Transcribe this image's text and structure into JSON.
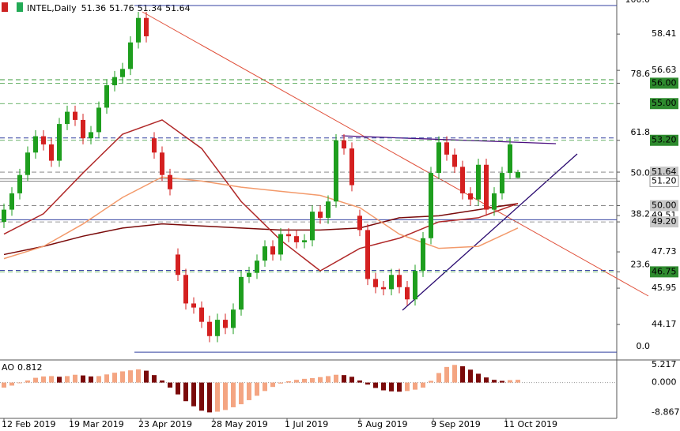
{
  "header": {
    "symbol": "INTEL,Daily"
  },
  "chart_data": {
    "type": "candlestick",
    "ylim": [
      42.43,
      60.08
    ],
    "up_color": "#1e9e1e",
    "down_color": "#d42020",
    "candles": [
      [
        49.2,
        50.1,
        48.9,
        49.8
      ],
      [
        49.8,
        50.9,
        49.5,
        50.6
      ],
      [
        50.6,
        51.8,
        50.3,
        51.5
      ],
      [
        51.5,
        52.9,
        51.2,
        52.6
      ],
      [
        52.6,
        53.7,
        52.3,
        53.4
      ],
      [
        53.4,
        53.7,
        52.7,
        53.0
      ],
      [
        53.0,
        53.3,
        51.9,
        52.2
      ],
      [
        52.2,
        54.3,
        51.9,
        54.0
      ],
      [
        54.0,
        54.9,
        53.7,
        54.6
      ],
      [
        54.6,
        54.9,
        53.9,
        54.2
      ],
      [
        54.2,
        54.5,
        53.0,
        53.3
      ],
      [
        53.3,
        53.9,
        53.0,
        53.6
      ],
      [
        53.6,
        55.1,
        53.3,
        54.8
      ],
      [
        54.8,
        56.2,
        54.5,
        55.9
      ],
      [
        55.9,
        56.6,
        55.6,
        56.3
      ],
      [
        56.3,
        57.0,
        56.0,
        56.7
      ],
      [
        56.7,
        58.3,
        56.4,
        58.0
      ],
      [
        58.0,
        59.5,
        57.7,
        59.2
      ],
      [
        59.2,
        59.5,
        58.0,
        58.3
      ],
      [
        53.3,
        53.6,
        52.3,
        52.6
      ],
      [
        52.6,
        52.9,
        51.2,
        51.5
      ],
      [
        51.5,
        51.8,
        50.5,
        50.8
      ],
      [
        47.6,
        47.9,
        46.3,
        46.6
      ],
      [
        46.6,
        46.9,
        44.9,
        45.2
      ],
      [
        45.2,
        45.5,
        44.7,
        45.0
      ],
      [
        45.0,
        45.3,
        44.0,
        44.3
      ],
      [
        44.3,
        44.6,
        43.3,
        43.6
      ],
      [
        43.6,
        44.7,
        43.3,
        44.4
      ],
      [
        44.4,
        44.7,
        43.7,
        44.0
      ],
      [
        44.0,
        45.2,
        43.7,
        44.9
      ],
      [
        44.9,
        46.8,
        44.6,
        46.5
      ],
      [
        46.5,
        47.0,
        46.2,
        46.7
      ],
      [
        46.7,
        47.6,
        46.4,
        47.3
      ],
      [
        47.3,
        48.3,
        47.0,
        48.0
      ],
      [
        48.0,
        48.3,
        47.3,
        47.6
      ],
      [
        47.6,
        48.9,
        47.3,
        48.6
      ],
      [
        48.6,
        48.9,
        48.2,
        48.5
      ],
      [
        48.5,
        48.8,
        47.9,
        48.2
      ],
      [
        48.2,
        48.6,
        47.9,
        48.3
      ],
      [
        48.3,
        50.0,
        48.0,
        49.7
      ],
      [
        49.7,
        50.0,
        49.1,
        49.4
      ],
      [
        49.4,
        50.5,
        49.1,
        50.2
      ],
      [
        50.2,
        53.5,
        49.9,
        53.2
      ],
      [
        53.2,
        53.5,
        52.5,
        52.8
      ],
      [
        52.8,
        53.1,
        50.7,
        51.0
      ],
      [
        49.5,
        49.8,
        48.5,
        48.8
      ],
      [
        48.8,
        49.1,
        46.1,
        46.4
      ],
      [
        46.4,
        46.7,
        45.7,
        46.0
      ],
      [
        46.0,
        46.3,
        45.6,
        45.9
      ],
      [
        45.9,
        46.9,
        45.6,
        46.6
      ],
      [
        46.6,
        46.9,
        45.7,
        46.0
      ],
      [
        46.0,
        46.3,
        45.1,
        45.4
      ],
      [
        45.4,
        47.1,
        45.1,
        46.8
      ],
      [
        46.8,
        48.7,
        46.5,
        48.4
      ],
      [
        48.4,
        51.9,
        48.1,
        51.6
      ],
      [
        51.6,
        53.4,
        51.3,
        53.1
      ],
      [
        53.1,
        53.4,
        52.2,
        52.5
      ],
      [
        52.5,
        52.8,
        51.6,
        51.9
      ],
      [
        51.9,
        52.2,
        50.3,
        50.6
      ],
      [
        50.6,
        50.9,
        50.0,
        50.3
      ],
      [
        50.3,
        52.3,
        50.0,
        52.0
      ],
      [
        52.0,
        52.3,
        49.5,
        49.8
      ],
      [
        49.8,
        50.9,
        49.5,
        50.6
      ],
      [
        50.6,
        51.9,
        50.3,
        51.6
      ],
      [
        51.6,
        53.3,
        51.3,
        53.0
      ],
      [
        51.36,
        51.76,
        51.34,
        51.64
      ]
    ],
    "ma": [
      {
        "color": "#7a0a0a",
        "x": [
          0,
          5,
          10,
          15,
          20,
          25,
          30,
          35,
          40,
          45,
          50,
          55,
          60,
          65
        ],
        "values": [
          47.6,
          48.0,
          48.5,
          48.9,
          49.1,
          49.0,
          48.9,
          48.8,
          48.8,
          48.9,
          49.4,
          49.5,
          49.8,
          50.1
        ]
      },
      {
        "color": "#b02828",
        "x": [
          0,
          5,
          10,
          15,
          20,
          25,
          30,
          35,
          40,
          45,
          50,
          55,
          60,
          65
        ],
        "values": [
          48.6,
          49.6,
          51.6,
          53.5,
          54.2,
          52.8,
          50.2,
          48.3,
          46.8,
          47.9,
          48.4,
          49.2,
          49.4,
          50.1
        ]
      },
      {
        "color": "#f39a6b",
        "x": [
          0,
          5,
          10,
          15,
          20,
          25,
          30,
          35,
          40,
          45,
          50,
          55,
          60,
          65
        ],
        "values": [
          47.4,
          48.0,
          49.1,
          50.4,
          51.4,
          51.2,
          50.9,
          50.7,
          50.5,
          49.9,
          48.6,
          47.9,
          48.0,
          48.9
        ]
      }
    ],
    "fib": {
      "high": 59.81,
      "low": 42.81,
      "levels": [
        {
          "value": 100,
          "label": "100.0"
        },
        {
          "value": 78.6,
          "label": "78.6"
        },
        {
          "value": 61.8,
          "label": "61.8"
        },
        {
          "value": 50,
          "label": "50.0"
        },
        {
          "value": 38.2,
          "label": "38.2"
        },
        {
          "value": 23.6,
          "label": "23.6"
        },
        {
          "value": 0,
          "label": "0.0"
        }
      ]
    },
    "yticks": [
      58.41,
      56.63,
      {
        "value": 56,
        "label": "56.00",
        "style": "green"
      },
      {
        "value": 55,
        "label": "55.00",
        "style": "green"
      },
      {
        "value": 53.2,
        "label": "53.20",
        "style": "green"
      },
      {
        "value": 51.64,
        "style": "gray"
      },
      {
        "value": 51.2,
        "label": "51.20",
        "style": "white"
      },
      {
        "value": 50,
        "label": "50.00",
        "style": "gray"
      },
      49.51,
      {
        "value": 49.2,
        "label": "49.20",
        "style": "gray"
      },
      47.73,
      {
        "value": 46.75,
        "style": "green"
      },
      45.95,
      44.17
    ],
    "xticks": [
      {
        "value": 0,
        "label": "12 Feb 2019"
      },
      {
        "value": 8.5,
        "label": "19 Mar 2019"
      },
      {
        "value": 17.3,
        "label": "23 Apr 2019"
      },
      {
        "value": 26.5,
        "label": "28 May 2019"
      },
      {
        "value": 35.8,
        "label": "1 Jul 2019"
      },
      {
        "value": 45,
        "label": "5 Aug 2019"
      },
      {
        "value": 54.3,
        "label": "9 Sep 2019"
      },
      {
        "value": 63.5,
        "label": "11 Oct 2019"
      }
    ],
    "ao": {
      "name": "AO",
      "last": 0.812,
      "ylim": [
        -10.57,
        6.43
      ],
      "up_color": "#f4a582",
      "down_color": "#7a0a0a",
      "yticks": [
        5.217,
        {
          "value": 0,
          "label": "0.000"
        },
        -8.867
      ],
      "values": [
        -1.5,
        -0.9,
        -0.2,
        0.6,
        1.4,
        1.8,
        1.9,
        1.7,
        1.9,
        2.3,
        2.1,
        1.8,
        1.9,
        2.4,
        2.9,
        3.3,
        3.6,
        3.9,
        3.5,
        2.2,
        0.6,
        -1.5,
        -3.5,
        -5.5,
        -7.0,
        -8.3,
        -8.8,
        -8.6,
        -8.1,
        -7.3,
        -6.4,
        -5.2,
        -3.9,
        -2.5,
        -1.3,
        -0.3,
        0.4,
        0.8,
        1.1,
        1.3,
        1.6,
        1.9,
        2.3,
        2.2,
        1.7,
        0.6,
        -0.6,
        -1.6,
        -2.3,
        -2.6,
        -2.7,
        -2.5,
        -2.1,
        -1.5,
        0.5,
        2.8,
        4.6,
        5.2,
        4.8,
        3.8,
        2.6,
        1.5,
        0.8,
        0.5,
        0.7,
        0.812
      ]
    }
  }
}
